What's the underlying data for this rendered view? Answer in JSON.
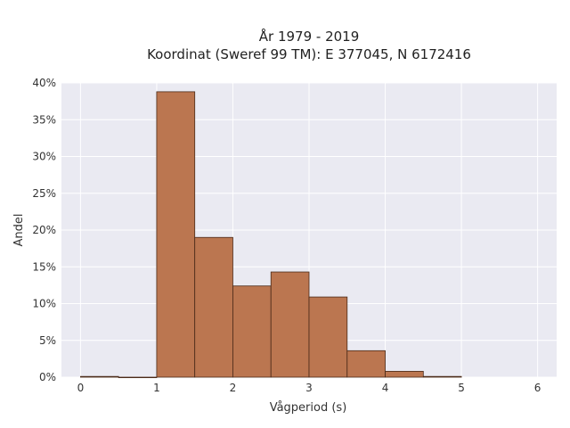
{
  "chart_data": {
    "type": "bar",
    "title_lines": [
      "År 1979 - 2019",
      "Koordinat (Sweref 99 TM): E 377045, N 6172416"
    ],
    "xlabel": "Vågperiod (s)",
    "ylabel": "Andel",
    "xlim": [
      -0.25,
      6.25
    ],
    "ylim": [
      0,
      40
    ],
    "x_ticks": [
      0,
      1,
      2,
      3,
      4,
      5,
      6
    ],
    "y_ticks": [
      0,
      5,
      10,
      15,
      20,
      25,
      30,
      35,
      40
    ],
    "y_tick_labels": [
      "0%",
      "5%",
      "10%",
      "15%",
      "20%",
      "25%",
      "30%",
      "35%",
      "40%"
    ],
    "bin_width": 0.5,
    "bins": [
      {
        "start": 0.0,
        "value": 0.1
      },
      {
        "start": 0.5,
        "value": 0.0
      },
      {
        "start": 1.0,
        "value": 38.8
      },
      {
        "start": 1.5,
        "value": 19.0
      },
      {
        "start": 2.0,
        "value": 12.4
      },
      {
        "start": 2.5,
        "value": 14.3
      },
      {
        "start": 3.0,
        "value": 10.9
      },
      {
        "start": 3.5,
        "value": 3.6
      },
      {
        "start": 4.0,
        "value": 0.8
      },
      {
        "start": 4.5,
        "value": 0.1
      }
    ],
    "bar_color": "#bb7650",
    "edge_color": "#4a2a18",
    "background_color": "#eaeaf2",
    "grid": true
  }
}
